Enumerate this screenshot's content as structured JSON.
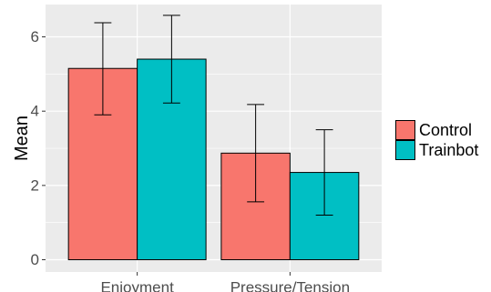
{
  "chart_data": {
    "type": "bar",
    "categories": [
      "Enjoyment",
      "Pressure/Tension"
    ],
    "series": [
      {
        "name": "Control",
        "color": "#F8766D",
        "values": [
          5.15,
          2.87
        ],
        "error_low": [
          3.9,
          1.56
        ],
        "error_high": [
          6.38,
          4.18
        ]
      },
      {
        "name": "Trainbot",
        "color": "#00BFC4",
        "values": [
          5.4,
          2.35
        ],
        "error_low": [
          4.22,
          1.2
        ],
        "error_high": [
          6.58,
          3.5
        ]
      }
    ],
    "title": "",
    "xlabel": "",
    "ylabel": "Mean",
    "ylim": [
      -0.33,
      6.87
    ],
    "yticks": [
      0,
      2,
      4,
      6
    ],
    "grid": true,
    "legend_position": "right"
  }
}
